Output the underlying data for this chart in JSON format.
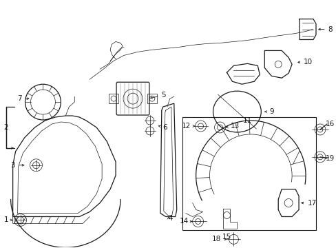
{
  "bg_color": "#ffffff",
  "line_color": "#1a1a1a",
  "fig_width": 4.89,
  "fig_height": 3.6,
  "dpi": 100,
  "font_size": 7.5,
  "lw_main": 0.9,
  "lw_thin": 0.5
}
